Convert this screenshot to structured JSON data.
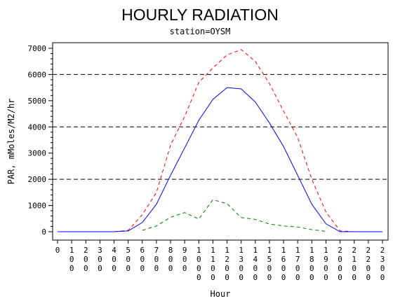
{
  "chart_data": {
    "type": "line",
    "title": "HOURLY RADIATION",
    "subtitle": "station=OYSM",
    "xlabel": "Hour",
    "ylabel": "PAR, mMoles/M2/hr",
    "ylim": [
      0,
      7000
    ],
    "yticks": [
      0,
      1000,
      2000,
      3000,
      4000,
      5000,
      6000,
      7000
    ],
    "reference_lines": [
      2000,
      4000,
      6000
    ],
    "x_tick_labels": [
      "0",
      "100",
      "200",
      "300",
      "400",
      "500",
      "600",
      "700",
      "800",
      "900",
      "1000",
      "1100",
      "1200",
      "1300",
      "1400",
      "1500",
      "1600",
      "1700",
      "1800",
      "1900",
      "2000",
      "2100",
      "2200",
      "2300"
    ],
    "x": [
      0,
      100,
      200,
      300,
      400,
      500,
      600,
      700,
      800,
      900,
      1000,
      1100,
      1200,
      1300,
      1400,
      1500,
      1600,
      1700,
      1800,
      1900,
      2000,
      2100,
      2200,
      2300
    ],
    "series": [
      {
        "color": "#ff0000",
        "dash": "dashed",
        "values": [
          0,
          0,
          0,
          0,
          0,
          50,
          650,
          1500,
          3300,
          4400,
          5700,
          6250,
          6750,
          6950,
          6500,
          5650,
          4600,
          3600,
          2000,
          750,
          30,
          0,
          0,
          0
        ]
      },
      {
        "color": "#0000ff",
        "dash": "solid",
        "values": [
          0,
          0,
          0,
          0,
          0,
          30,
          350,
          1050,
          2150,
          3200,
          4250,
          5050,
          5500,
          5450,
          4950,
          4150,
          3250,
          2150,
          1050,
          300,
          0,
          0,
          0,
          0
        ]
      },
      {
        "color": "#008000",
        "dash": "dashed",
        "values": [
          null,
          null,
          null,
          null,
          null,
          null,
          50,
          220,
          550,
          730,
          480,
          1220,
          1070,
          540,
          470,
          290,
          220,
          180,
          80,
          10,
          null,
          null,
          null,
          null
        ]
      }
    ]
  }
}
